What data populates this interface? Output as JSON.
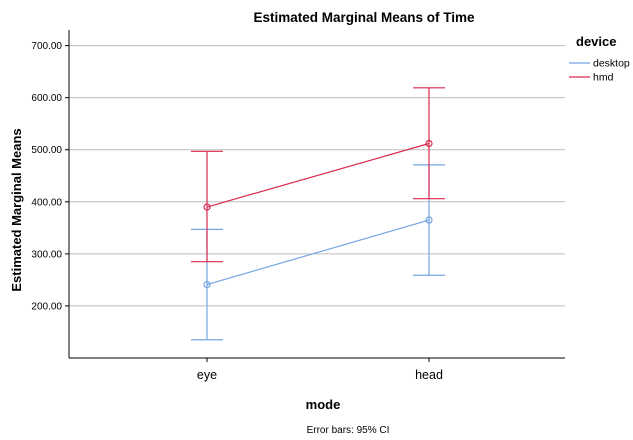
{
  "chart_data": {
    "type": "line",
    "title": "Estimated Marginal Means of Time",
    "xlabel": "mode",
    "ylabel": "Estimated Marginal Means",
    "categories": [
      "eye",
      "head"
    ],
    "ylim": [
      100,
      730
    ],
    "yticks": [
      200,
      300,
      400,
      500,
      600,
      700
    ],
    "ytick_labels": [
      "200.00",
      "300.00",
      "400.00",
      "500.00",
      "600.00",
      "700.00"
    ],
    "grid": "horizontal",
    "legend_title": "device",
    "legend_position": "top-right",
    "series": [
      {
        "name": "desktop",
        "color": "#74A5E2",
        "values": [
          241,
          365
        ],
        "ci_lower": [
          135,
          259
        ],
        "ci_upper": [
          347,
          471
        ]
      },
      {
        "name": "hmd",
        "color": "#D9294D",
        "values": [
          390,
          512
        ],
        "ci_lower": [
          285,
          406
        ],
        "ci_upper": [
          497,
          619
        ]
      }
    ],
    "footnote": "Error bars: 95% CI"
  }
}
